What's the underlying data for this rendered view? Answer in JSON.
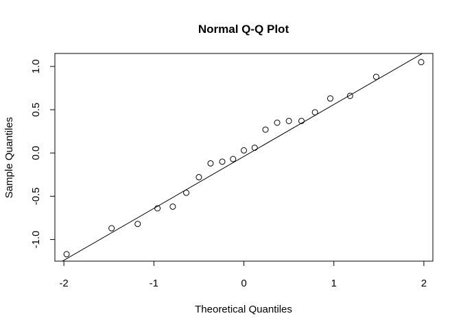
{
  "chart_data": {
    "type": "scatter",
    "title": "Normal Q-Q Plot",
    "xlabel": "Theoretical Quantiles",
    "ylabel": "Sample Quantiles",
    "xlim": [
      -2.1,
      2.1
    ],
    "ylim": [
      -1.25,
      1.15
    ],
    "xticks": [
      -2,
      -1,
      0,
      1,
      2
    ],
    "xtick_labels": [
      "-2",
      "-1",
      "0",
      "1",
      "2"
    ],
    "yticks": [
      -1.0,
      -0.5,
      0.0,
      0.5,
      1.0
    ],
    "ytick_labels": [
      "-1.0",
      "-0.5",
      "0.0",
      "0.5",
      "1.0"
    ],
    "grid": false,
    "marker": "open-circle",
    "color": "#000000",
    "points": {
      "x": [
        -1.97,
        -1.47,
        -1.18,
        -0.96,
        -0.79,
        -0.64,
        -0.5,
        -0.37,
        -0.24,
        -0.12,
        0.0,
        0.12,
        0.24,
        0.37,
        0.5,
        0.64,
        0.79,
        0.96,
        1.18,
        1.47,
        1.97
      ],
      "y": [
        -1.17,
        -0.87,
        -0.82,
        -0.64,
        -0.62,
        -0.46,
        -0.28,
        -0.12,
        -0.1,
        -0.07,
        0.03,
        0.06,
        0.27,
        0.35,
        0.37,
        0.37,
        0.47,
        0.63,
        0.66,
        0.88,
        1.05
      ]
    },
    "reference_line": {
      "x": [
        -2.1,
        2.1
      ],
      "y": [
        -1.3,
        1.22
      ]
    }
  }
}
